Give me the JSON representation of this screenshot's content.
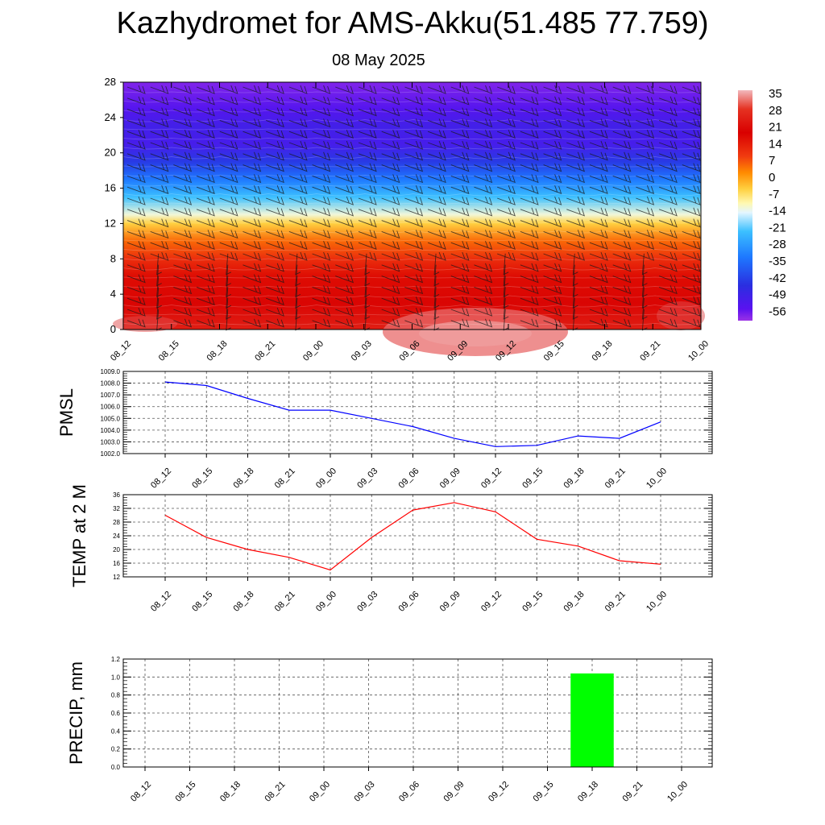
{
  "title": "Kazhydromet for AMS-Akku(51.485 77.759)",
  "subtitle": "08 May 2025",
  "chart_data": [
    {
      "type": "heatmap",
      "xticks": [
        "08_12",
        "08_15",
        "08_18",
        "08_21",
        "09_00",
        "09_03",
        "09_06",
        "09_09",
        "09_12",
        "09_15",
        "09_18",
        "09_21",
        "10_00"
      ],
      "yticks": [
        0,
        4,
        8,
        12,
        16,
        20,
        24,
        28
      ],
      "ylim": [
        0,
        28
      ],
      "colorbar": {
        "ticks": [
          35,
          28,
          21,
          14,
          7,
          0,
          -7,
          -14,
          -21,
          -28,
          -35,
          -42,
          -49,
          -56
        ],
        "range": [
          -60,
          38
        ],
        "stops": [
          {
            "value": 38,
            "color": "#f2b8bc"
          },
          {
            "value": 30,
            "color": "#e53222"
          },
          {
            "value": 20,
            "color": "#d90000"
          },
          {
            "value": 10,
            "color": "#f03a10"
          },
          {
            "value": 3,
            "color": "#ff8a00"
          },
          {
            "value": -4,
            "color": "#ffd040"
          },
          {
            "value": -10,
            "color": "#fff8b0"
          },
          {
            "value": -14,
            "color": "#e4f6ff"
          },
          {
            "value": -22,
            "color": "#3cc0ff"
          },
          {
            "value": -33,
            "color": "#1e78ff"
          },
          {
            "value": -45,
            "color": "#2a2ee0"
          },
          {
            "value": -55,
            "color": "#5a12f0"
          },
          {
            "value": -60,
            "color": "#9b32e6"
          }
        ]
      },
      "height_temperature_profile": [
        {
          "level": 0,
          "value": 26
        },
        {
          "level": 3,
          "value": 21
        },
        {
          "level": 6,
          "value": 18
        },
        {
          "level": 8,
          "value": 12
        },
        {
          "level": 10,
          "value": 6
        },
        {
          "level": 12,
          "value": -4
        },
        {
          "level": 13,
          "value": -12
        },
        {
          "level": 15,
          "value": -22
        },
        {
          "level": 17,
          "value": -33
        },
        {
          "level": 19,
          "value": -43
        },
        {
          "level": 21,
          "value": -51
        },
        {
          "level": 23,
          "value": -50
        },
        {
          "level": 25,
          "value": -54
        },
        {
          "level": 28,
          "value": -58
        }
      ]
    },
    {
      "type": "line",
      "ylabel": "PMSL",
      "ylim": [
        1002,
        1009
      ],
      "yticks": [
        "1009.0",
        "1008.0",
        "1007.0",
        "1006.0",
        "1005.0",
        "1004.0",
        "1003.0",
        "1002.0"
      ],
      "categories": [
        "08_12",
        "08_15",
        "08_18",
        "08_21",
        "09_00",
        "09_03",
        "09_06",
        "09_09",
        "09_12",
        "09_15",
        "09_18",
        "09_21",
        "10_00"
      ],
      "series": [
        {
          "values": [
            1008.1,
            1007.8,
            1006.7,
            1005.7,
            1005.7,
            1005.0,
            1004.3,
            1003.3,
            1002.6,
            1002.7,
            1003.5,
            1003.3,
            1004.7
          ],
          "color": "#0000ff"
        }
      ]
    },
    {
      "type": "line",
      "ylabel": "TEMP at 2 M",
      "ylim": [
        12,
        36
      ],
      "yticks": [
        "36",
        "32",
        "28",
        "24",
        "20",
        "16",
        "12"
      ],
      "categories": [
        "08_12",
        "08_15",
        "08_18",
        "08_21",
        "09_00",
        "09_03",
        "09_06",
        "09_09",
        "09_12",
        "09_15",
        "09_18",
        "09_21",
        "10_00"
      ],
      "series": [
        {
          "values": [
            30,
            23.5,
            20,
            17.7,
            14,
            23.5,
            31.5,
            33.7,
            31,
            23,
            21,
            16.7,
            15.7
          ],
          "color": "#ff0000"
        }
      ]
    },
    {
      "type": "bar",
      "ylabel": "PRECIP, mm",
      "ylim": [
        0,
        1.2
      ],
      "yticks": [
        "1.2",
        "1.0",
        "0.8",
        "0.6",
        "0.4",
        "0.2",
        "0.0"
      ],
      "categories": [
        "08_12",
        "08_15",
        "08_18",
        "08_21",
        "09_00",
        "09_03",
        "09_06",
        "09_09",
        "09_12",
        "09_15",
        "09_18",
        "09_21",
        "10_00"
      ],
      "series": [
        {
          "values": [
            0,
            0,
            0,
            0,
            0,
            0,
            0,
            0,
            0,
            0,
            1.04,
            0,
            0
          ],
          "color": "#00ff00"
        }
      ]
    }
  ]
}
